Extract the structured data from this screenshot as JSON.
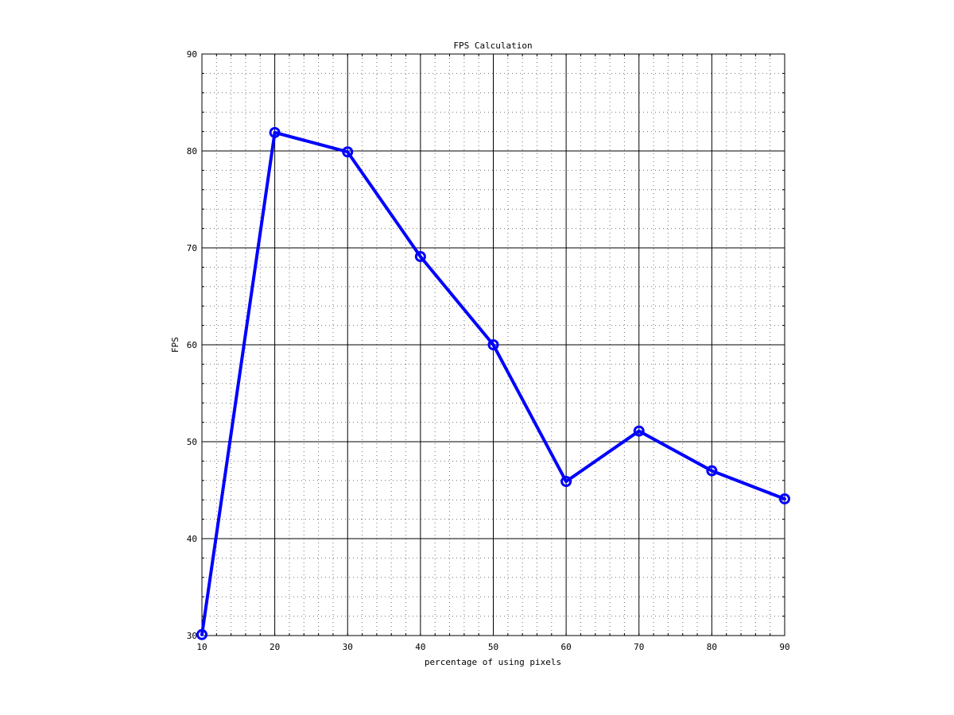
{
  "chart_data": {
    "type": "line",
    "title": "FPS Calculation",
    "xlabel": "percentage of using pixels",
    "ylabel": "FPS",
    "xlim": [
      10,
      90
    ],
    "ylim": [
      30,
      90
    ],
    "xticks": [
      10,
      20,
      30,
      40,
      50,
      60,
      70,
      80,
      90
    ],
    "yticks": [
      30,
      40,
      50,
      60,
      70,
      80,
      90
    ],
    "grid": true,
    "minor_grid": true,
    "series": [
      {
        "x": [
          10,
          20,
          30,
          40,
          50,
          60,
          70,
          80,
          90
        ],
        "values": [
          30.1,
          81.9,
          79.9,
          69.1,
          60.0,
          45.9,
          51.1,
          47.0,
          44.1
        ],
        "color": "#0000ff",
        "marker": "circle"
      }
    ]
  }
}
